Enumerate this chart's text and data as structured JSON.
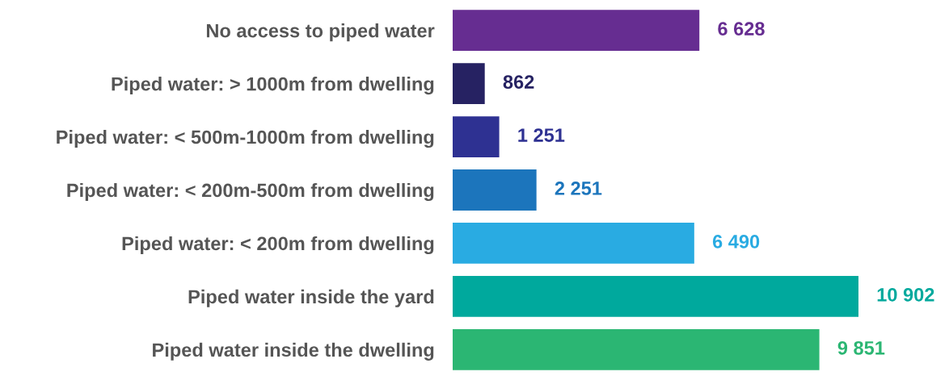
{
  "chart_data": {
    "type": "bar",
    "orientation": "horizontal",
    "categories": [
      "No access to piped water",
      "Piped water: > 1000m from dwelling",
      "Piped water: < 500m-1000m from dwelling",
      "Piped water: < 200m-500m from dwelling",
      "Piped water: < 200m from dwelling",
      "Piped water inside the yard",
      "Piped water inside the dwelling"
    ],
    "values": [
      6628,
      862,
      1251,
      2251,
      6490,
      10902,
      9851
    ],
    "value_labels": [
      "6 628",
      "862",
      "1 251",
      "2 251",
      "6 490",
      "10 902",
      "9 851"
    ],
    "colors": [
      "#662d91",
      "#262262",
      "#2e3192",
      "#1c75bc",
      "#29abe2",
      "#00a99d",
      "#2bb673"
    ],
    "grid": false,
    "legend": false
  }
}
